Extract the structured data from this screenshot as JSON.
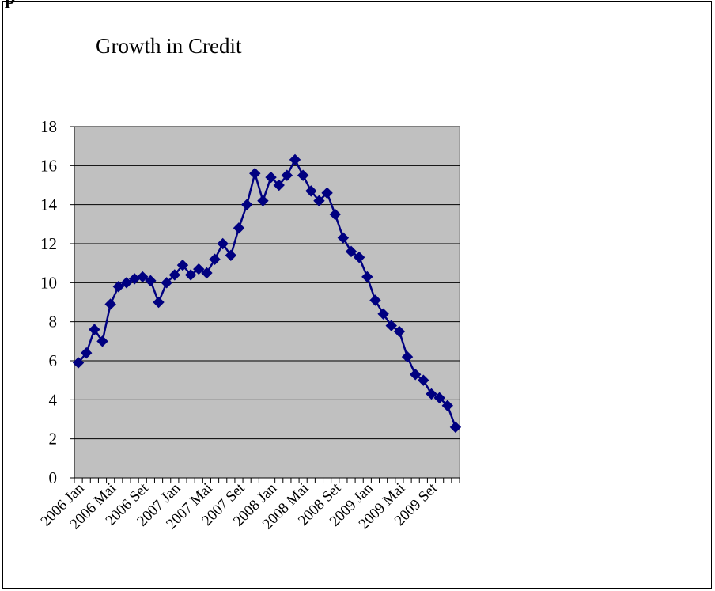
{
  "page": {
    "heading": "p"
  },
  "chart_data": {
    "type": "line",
    "title": "Growth in Credit",
    "xlabel": "",
    "ylabel": "",
    "ylim": [
      0,
      18
    ],
    "yticks": [
      0,
      2,
      4,
      6,
      8,
      10,
      12,
      14,
      16,
      18
    ],
    "grid": "horizontal",
    "legend": "none",
    "plot_background": "#c0c0c0",
    "series_color": "#000080",
    "gridline_color": "#000000",
    "x_label_every": 4,
    "categories": [
      "2006 Jan",
      "2006 Feb",
      "2006 Mar",
      "2006 Apr",
      "2006 Mai",
      "2006 Jun",
      "2006 Jul",
      "2006 Ago",
      "2006 Set",
      "2006 Out",
      "2006 Nov",
      "2006 Dez",
      "2007 Jan",
      "2007 Feb",
      "2007 Mar",
      "2007 Apr",
      "2007 Mai",
      "2007 Jun",
      "2007 Jul",
      "2007 Ago",
      "2007 Set",
      "2007 Out",
      "2007 Nov",
      "2007 Dez",
      "2008 Jan",
      "2008 Feb",
      "2008 Mar",
      "2008 Apr",
      "2008 Mai",
      "2008 Jun",
      "2008 Jul",
      "2008 Ago",
      "2008 Set",
      "2008 Out",
      "2008 Nov",
      "2008 Dez",
      "2009 Jan",
      "2009 Feb",
      "2009 Mar",
      "2009 Apr",
      "2009 Mai",
      "2009 Jun",
      "2009 Jul",
      "2009 Ago",
      "2009 Set",
      "2009 Out",
      "2009 Nov",
      "2009 Dez"
    ],
    "series": [
      {
        "values": [
          5.9,
          6.4,
          7.6,
          7.0,
          8.9,
          9.8,
          10.0,
          10.2,
          10.3,
          10.1,
          9.0,
          10.0,
          10.4,
          10.9,
          10.4,
          10.7,
          10.5,
          11.2,
          12.0,
          11.4,
          12.8,
          14.0,
          15.6,
          14.2,
          15.4,
          15.0,
          15.5,
          16.3,
          15.5,
          14.7,
          14.2,
          14.6,
          13.5,
          12.3,
          11.6,
          11.3,
          10.3,
          9.1,
          8.4,
          7.8,
          7.5,
          6.2,
          5.3,
          5.0,
          4.3,
          4.1,
          3.7,
          2.6
        ]
      }
    ]
  }
}
